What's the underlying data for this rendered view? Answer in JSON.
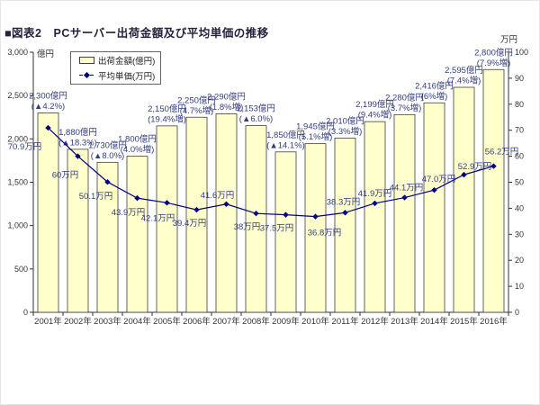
{
  "window": {
    "title": "■図表2　PCサーバー出荷金額及び平均単価の推移"
  },
  "legend": {
    "items": [
      {
        "label": "出荷金額(億円)",
        "swatch": "bar-swatch"
      },
      {
        "label": "平均単価(万円)",
        "swatch": "line-swatch"
      }
    ]
  },
  "colors": {
    "bar_fill": "#ffffcc",
    "bar_border": "#404040",
    "line": "#000080",
    "marker": "#000080",
    "data_label": "#333d80",
    "axis_text": "#333333",
    "axis_line": "#333333",
    "title_text": "#23233f"
  },
  "chart_data": {
    "type": "bar+line",
    "title": "PCサーバー出荷金額及び平均単価の推移",
    "categories": [
      "2001年",
      "2002年",
      "2003年",
      "2004年",
      "2005年",
      "2006年",
      "2007年",
      "2008年",
      "2009年",
      "2010年",
      "2011年",
      "2012年",
      "2013年",
      "2014年",
      "2015年",
      "2016年"
    ],
    "series": [
      {
        "name": "出荷金額(億円)",
        "type": "bar",
        "axis": "left",
        "values": [
          2300,
          1880,
          1730,
          1800,
          2150,
          2250,
          2290,
          2153,
          1850,
          1945,
          2010,
          2199,
          2280,
          2416,
          2595,
          2800
        ],
        "data_labels": [
          {
            "value": "2,300億円",
            "change": "(▲4.2%)"
          },
          {
            "value": "1,880億円",
            "change": "(▲18.3%)"
          },
          {
            "value": "1,730億円",
            "change": "(▲8.0%)"
          },
          {
            "value": "1,800億円",
            "change": "(4.0%増)"
          },
          {
            "value": "2,150億円",
            "change": "(19.4%増)"
          },
          {
            "value": "2,250億円",
            "change": "(4.7%増)"
          },
          {
            "value": "2,290億円",
            "change": "(1.8%増)"
          },
          {
            "value": "2,153億円",
            "change": "(▲6.0%)"
          },
          {
            "value": "1,850億円",
            "change": "(▲14.1%)"
          },
          {
            "value": "1,945億円",
            "change": "(5.1%増)"
          },
          {
            "value": "2,010億円",
            "change": "(3.3%増)"
          },
          {
            "value": "2,199億円",
            "change": "(9.4%増)"
          },
          {
            "value": "2,280億円",
            "change": "(3.7%増)"
          },
          {
            "value": "2,416億円",
            "change": "(6%増)"
          },
          {
            "value": "2,595億円",
            "change": "(7.4%増)"
          },
          {
            "value": "2,800億円",
            "change": "(7.9%増)"
          }
        ]
      },
      {
        "name": "平均単価(万円)",
        "type": "line",
        "axis": "right",
        "values": [
          70.9,
          60,
          50.1,
          43.9,
          42.1,
          39.4,
          41.6,
          38,
          37.5,
          36.8,
          38.3,
          41.9,
          44.1,
          47.0,
          52.9,
          56.2
        ],
        "data_labels": [
          "70.9万円",
          "60万円",
          "50.1万円",
          "43.9万円",
          "42.1万円",
          "39.4万円",
          "41.6万円",
          "38万円",
          "37.5万円",
          "36.8万円",
          "38.3万円",
          "41.9万円",
          "44.1万円",
          "47.0万円",
          "52.9万円",
          "56.2万円"
        ],
        "label_placement": [
          {
            "dx": -26,
            "dy": 24
          },
          {
            "dx": -14,
            "dy": 24
          },
          {
            "dx": -13,
            "dy": 19
          },
          {
            "dx": -10,
            "dy": 19
          },
          {
            "dx": -10,
            "dy": 20
          },
          {
            "dx": -8,
            "dy": 18
          },
          {
            "dx": -10,
            "dy": -7
          },
          {
            "dx": -10,
            "dy": 18
          },
          {
            "dx": -10,
            "dy": 18
          },
          {
            "dx": 10,
            "dy": 21
          },
          {
            "dx": -2,
            "dy": -9
          },
          {
            "dx": 0,
            "dy": -8
          },
          {
            "dx": 2,
            "dy": -8
          },
          {
            "dx": 5,
            "dy": -9
          },
          {
            "dx": 12,
            "dy": -6
          },
          {
            "dx": 9,
            "dy": -13
          }
        ]
      }
    ],
    "axis_left": {
      "unit": "億円",
      "min": 0,
      "max": 3000,
      "ticks": [
        {
          "v": 0,
          "label": "0"
        },
        {
          "v": 500,
          "label": "500"
        },
        {
          "v": 1000,
          "label": "1,000"
        },
        {
          "v": 1500,
          "label": "1,500"
        },
        {
          "v": 2000,
          "label": "2,000"
        },
        {
          "v": 2500,
          "label": "2,500"
        },
        {
          "v": 3000,
          "label": "3,000"
        }
      ]
    },
    "axis_right": {
      "unit": "万円",
      "min": 0,
      "max": 100,
      "ticks": [
        {
          "v": 0,
          "label": "0"
        },
        {
          "v": 10,
          "label": "10"
        },
        {
          "v": 20,
          "label": "20"
        },
        {
          "v": 30,
          "label": "30"
        },
        {
          "v": 40,
          "label": "40"
        },
        {
          "v": 50,
          "label": "50"
        },
        {
          "v": 60,
          "label": "60"
        },
        {
          "v": 70,
          "label": "70"
        },
        {
          "v": 80,
          "label": "80"
        },
        {
          "v": 90,
          "label": "90"
        },
        {
          "v": 100,
          "label": "100"
        }
      ]
    },
    "grid": false,
    "legend_position": "top-left"
  }
}
